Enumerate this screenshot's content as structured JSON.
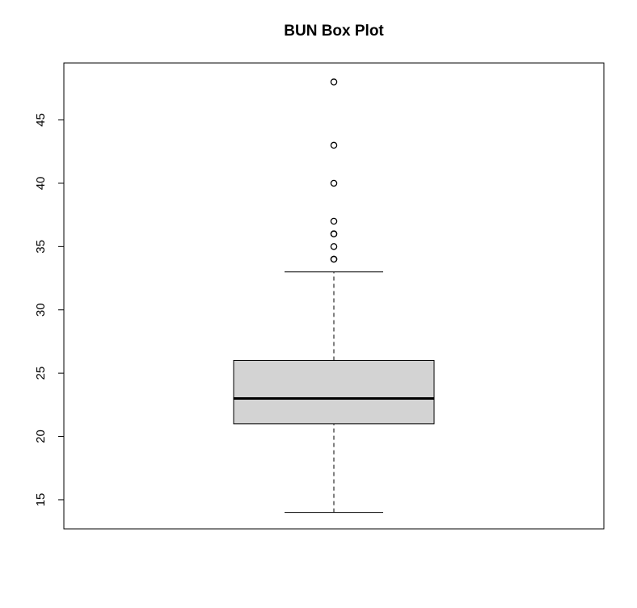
{
  "chart_data": {
    "type": "boxplot",
    "title": "BUN Box Plot",
    "xlabel": "",
    "ylabel": "",
    "ylim": [
      12.7,
      49.5
    ],
    "yticks": [
      15,
      20,
      25,
      30,
      35,
      40,
      45
    ],
    "box": {
      "lower_whisker": 14,
      "q1": 21,
      "median": 23,
      "q3": 26,
      "upper_whisker": 33
    },
    "outliers": [
      34,
      34,
      35,
      36,
      36,
      37,
      40,
      43,
      48
    ],
    "box_fill": "#d3d3d3",
    "grid": false
  }
}
